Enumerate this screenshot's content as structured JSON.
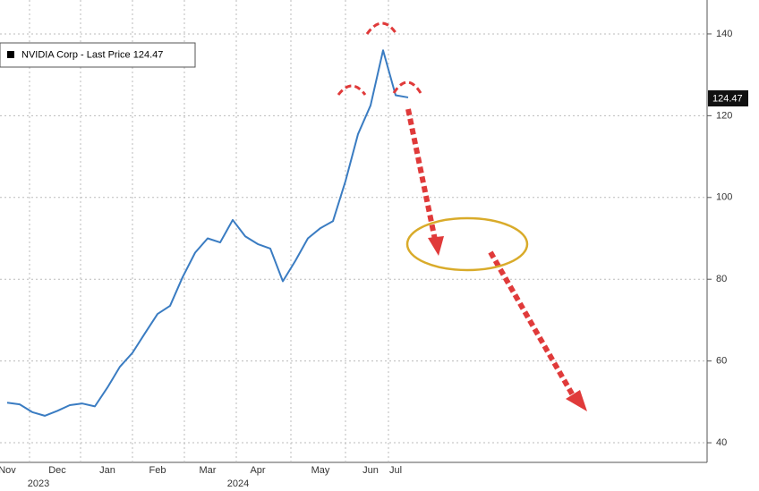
{
  "chart_data": {
    "type": "line",
    "categories": [
      "Nov",
      null,
      null,
      null,
      "Dec",
      null,
      null,
      null,
      "Jan",
      null,
      null,
      null,
      "Feb",
      null,
      null,
      null,
      "Mar",
      null,
      null,
      null,
      "Apr",
      null,
      null,
      null,
      null,
      "May",
      null,
      null,
      null,
      "Jun",
      null,
      "Jul",
      null
    ],
    "year_labels": [
      "2023",
      "2024"
    ],
    "series": [
      {
        "name": "NVIDIA Corp - Last Price",
        "color": "#3a7cc2",
        "values": [
          49.8,
          49.4,
          47.5,
          46.6,
          47.8,
          49.2,
          49.6,
          48.9,
          53.5,
          58.6,
          62,
          66.8,
          71.5,
          73.5,
          80.5,
          86.5,
          90,
          89,
          94.5,
          90.5,
          88.6,
          87.5,
          79.5,
          84.5,
          90,
          92.5,
          94.2,
          104,
          115.5,
          122.5,
          136,
          125,
          124.47
        ]
      }
    ],
    "last_price": 124.47,
    "ylim": [
      35.2,
      148.3
    ],
    "yticks": [
      40,
      60,
      80,
      100,
      120,
      140
    ],
    "grid": true
  }
}
